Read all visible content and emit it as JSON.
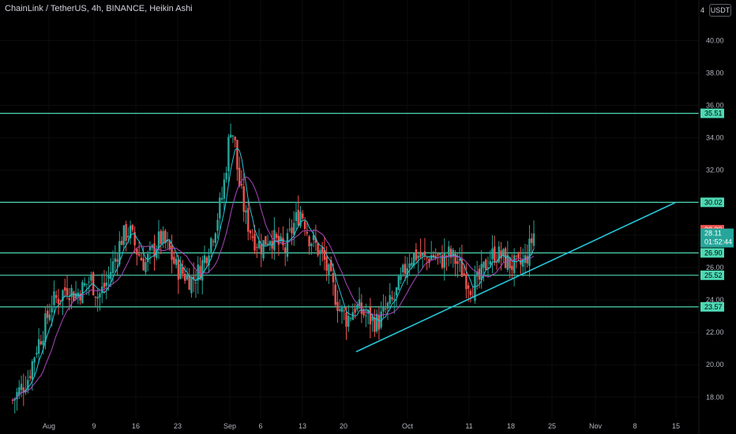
{
  "header": {
    "title": "ChainLink / TetherUS, 4h, BINANCE, Heikin Ashi",
    "currency_badge": "USDT",
    "menu_glyph": "4"
  },
  "colors": {
    "background": "#000000",
    "up_candle": "#26a69a",
    "down_candle": "#ef5350",
    "level_line": "#4dd9b4",
    "trendline": "#26c6da",
    "ma_fast": "#26c6da",
    "ma_slow": "#ab47bc",
    "last_price_bg": "#26a69a",
    "high_price_bg": "#ef5350"
  },
  "chart_data": {
    "type": "candlestick",
    "title": "ChainLink / TetherUS, 4h, BINANCE, Heikin Ashi",
    "ylim": [
      16.7,
      42.5
    ],
    "y_ticks": [
      "18.00",
      "20.00",
      "22.00",
      "24.00",
      "26.00",
      "28.00",
      "30.00",
      "32.00",
      "34.00",
      "36.00",
      "38.00",
      "40.00"
    ],
    "x_ticks": [
      "Aug",
      "9",
      "16",
      "23",
      "Sep",
      "6",
      "13",
      "20",
      "Oct",
      "11",
      "18",
      "25",
      "Nov",
      "8",
      "15"
    ],
    "horizontal_levels": [
      {
        "value": 35.51,
        "label": "35.51"
      },
      {
        "value": 30.02,
        "label": "30.02"
      },
      {
        "value": 26.9,
        "label": "26.90"
      },
      {
        "value": 25.52,
        "label": "25.52"
      },
      {
        "value": 23.57,
        "label": "23.57"
      }
    ],
    "trendline": {
      "start": {
        "x": "Sep 22",
        "y": 20.8
      },
      "end": {
        "x": "Nov 15",
        "y": 30.0
      }
    },
    "last_price": {
      "price": "28.11",
      "countdown": "01:52:44"
    },
    "high_price": "28.33",
    "price_anchors": [
      [
        0,
        17.8
      ],
      [
        2,
        18.5
      ],
      [
        4,
        19.2
      ],
      [
        6,
        21.0
      ],
      [
        8,
        22.2
      ],
      [
        10,
        23.8
      ],
      [
        12,
        24.2
      ],
      [
        14,
        24.8
      ],
      [
        16,
        24.3
      ],
      [
        18,
        24.7
      ],
      [
        20,
        25.3
      ],
      [
        22,
        24.2
      ],
      [
        24,
        25.0
      ],
      [
        26,
        26.3
      ],
      [
        28,
        27.8
      ],
      [
        30,
        28.3
      ],
      [
        32,
        27.0
      ],
      [
        34,
        26.2
      ],
      [
        36,
        27.0
      ],
      [
        38,
        27.8
      ],
      [
        40,
        27.2
      ],
      [
        42,
        26.0
      ],
      [
        44,
        25.6
      ],
      [
        46,
        25.2
      ],
      [
        48,
        25.8
      ],
      [
        50,
        27.0
      ],
      [
        52,
        28.5
      ],
      [
        54,
        30.5
      ],
      [
        55,
        32.5
      ],
      [
        56,
        34.8
      ],
      [
        57,
        34.0
      ],
      [
        58,
        31.5
      ],
      [
        60,
        29.0
      ],
      [
        62,
        27.8
      ],
      [
        64,
        27.3
      ],
      [
        66,
        28.0
      ],
      [
        68,
        27.5
      ],
      [
        70,
        27.0
      ],
      [
        72,
        28.5
      ],
      [
        74,
        29.5
      ],
      [
        75,
        29.0
      ],
      [
        76,
        28.0
      ],
      [
        78,
        27.3
      ],
      [
        80,
        26.5
      ],
      [
        82,
        25.0
      ],
      [
        84,
        23.5
      ],
      [
        86,
        22.8
      ],
      [
        88,
        23.6
      ],
      [
        90,
        23.2
      ],
      [
        92,
        22.8
      ],
      [
        94,
        22.6
      ],
      [
        96,
        23.4
      ],
      [
        98,
        24.0
      ],
      [
        100,
        25.3
      ],
      [
        102,
        26.6
      ],
      [
        104,
        26.8
      ],
      [
        106,
        26.5
      ],
      [
        108,
        26.8
      ],
      [
        110,
        26.4
      ],
      [
        112,
        26.8
      ],
      [
        114,
        26.4
      ],
      [
        116,
        25.6
      ],
      [
        118,
        24.8
      ],
      [
        120,
        25.2
      ],
      [
        122,
        26.4
      ],
      [
        124,
        26.9
      ],
      [
        126,
        26.6
      ],
      [
        128,
        26.2
      ],
      [
        130,
        26.0
      ],
      [
        132,
        26.5
      ],
      [
        134,
        28.1
      ]
    ]
  }
}
